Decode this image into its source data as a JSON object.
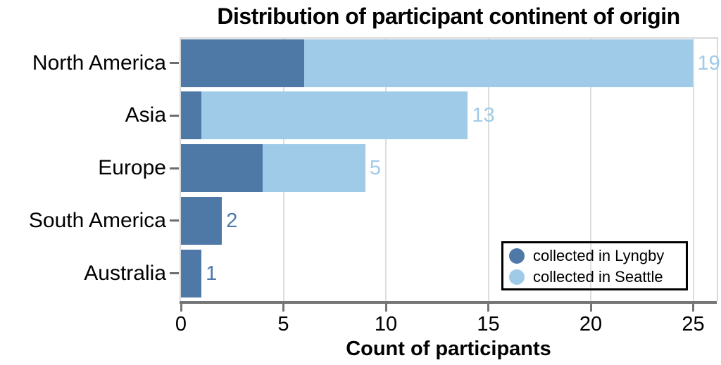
{
  "chart_data": {
    "type": "bar",
    "orientation": "horizontal",
    "stacked": true,
    "title": "Distribution of participant continent of origin",
    "xlabel": "Count of participants",
    "categories": [
      "North America",
      "Asia",
      "Europe",
      "South America",
      "Australia"
    ],
    "series": [
      {
        "name": "collected in Lyngby",
        "color": "#4e79a7",
        "values": [
          6,
          1,
          4,
          2,
          1
        ]
      },
      {
        "name": "collected in Seattle",
        "color": "#a0cbe8",
        "values": [
          19,
          13,
          5,
          0,
          0
        ]
      }
    ],
    "totals": [
      25,
      14,
      9,
      2,
      1
    ],
    "x_ticks": [
      0,
      5,
      10,
      15,
      20,
      25
    ],
    "xlim": [
      0,
      26.1
    ],
    "grid": true,
    "bar_labels": true,
    "legend_position": "bottom-right"
  },
  "colors": {
    "lyngby": "#4e79a7",
    "seattle": "#a0cbe8",
    "gridline": "#dddddd",
    "plot_border": "#d9d9d9",
    "axis": "#757575",
    "text": "#000000",
    "background": "#ffffff"
  }
}
